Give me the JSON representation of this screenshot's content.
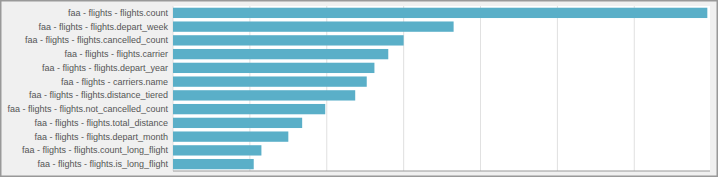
{
  "chart_data": {
    "type": "bar",
    "orientation": "horizontal",
    "categories": [
      "faa - flights - flights.is_long_flight",
      "faa - flights - flights.count_long_flight",
      "faa - flights - flights.depart_month",
      "faa - flights - flights.total_distance",
      "faa - flights - flights.not_cancelled_count",
      "faa - flights - flights.distance_tiered",
      "faa - flights - carriers.name",
      "faa - flights - flights.depart_year",
      "faa - flights - flights.carrier",
      "faa - flights - flights.cancelled_count",
      "faa - flights - flights.depart_week",
      "faa - flights - flights.count"
    ],
    "values": [
      105,
      115,
      150,
      168,
      198,
      237,
      252,
      262,
      280,
      300,
      365,
      695
    ],
    "color": "#5aafc8",
    "xlim": [
      0,
      698.475
    ],
    "xticks": [
      0,
      100,
      200,
      300,
      400,
      500,
      600
    ],
    "grid": true,
    "tick_labels": "y"
  }
}
